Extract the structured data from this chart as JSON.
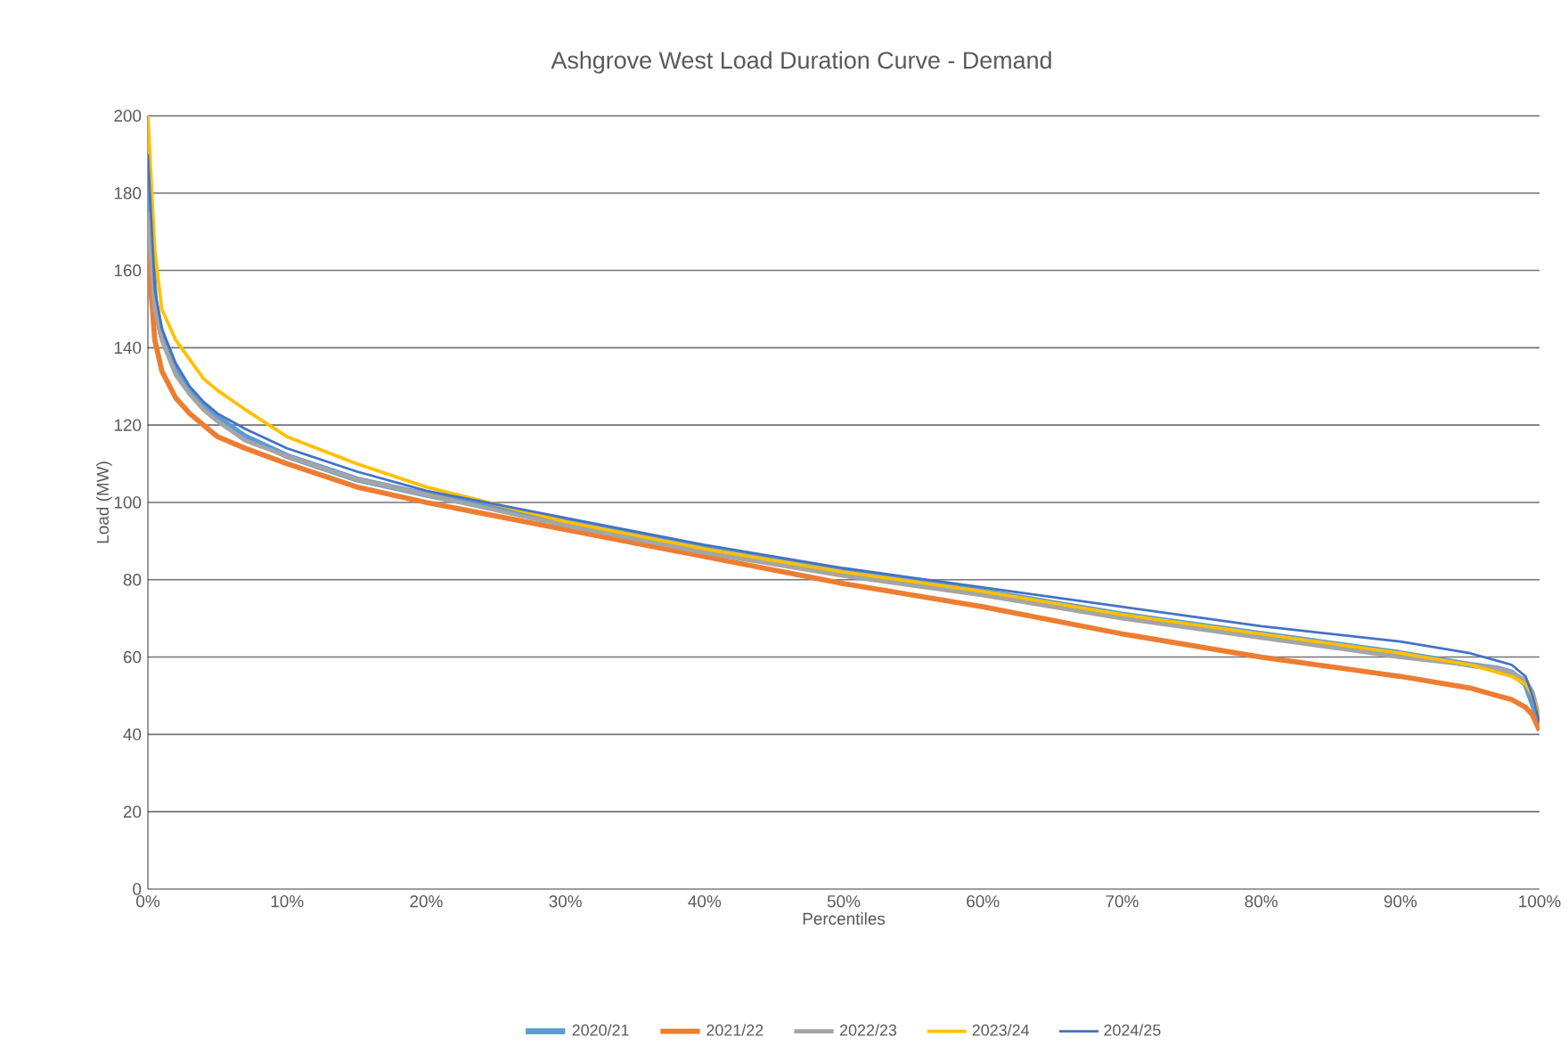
{
  "chart_data": {
    "type": "line",
    "title": "Ashgrove West Load Duration Curve - Demand",
    "xlabel": "Percentiles",
    "ylabel": "Load (MW)",
    "x": [
      0,
      0.5,
      1,
      2,
      3,
      4,
      5,
      7,
      10,
      15,
      20,
      30,
      40,
      50,
      60,
      70,
      80,
      90,
      95,
      97,
      98,
      99,
      99.5,
      100
    ],
    "series": [
      {
        "name": "2020/21",
        "color": "#5b9bd5",
        "values": [
          185,
          152,
          143,
          134,
          129,
          125,
          122,
          117,
          112,
          106,
          102,
          95,
          88,
          82,
          77,
          71,
          66,
          61,
          58,
          57,
          56,
          53,
          48,
          43
        ]
      },
      {
        "name": "2021/22",
        "color": "#ed7d31",
        "values": [
          165,
          142,
          134,
          127,
          123,
          120,
          117,
          114,
          110,
          104,
          100,
          93,
          86,
          79,
          73,
          66,
          60,
          55,
          52,
          50,
          49,
          47,
          45,
          41
        ]
      },
      {
        "name": "2022/23",
        "color": "#a5a5a5",
        "values": [
          175,
          150,
          142,
          133,
          128,
          124,
          121,
          116,
          112,
          106,
          102,
          94,
          87,
          81,
          76,
          70,
          65,
          60,
          58,
          57,
          56,
          54,
          51,
          44
        ]
      },
      {
        "name": "2023/24",
        "color": "#ffc000",
        "values": [
          200,
          165,
          150,
          142,
          137,
          132,
          129,
          124,
          117,
          110,
          104,
          95,
          88,
          82,
          77,
          71,
          66,
          61,
          58,
          56,
          55,
          53,
          50,
          44
        ]
      },
      {
        "name": "2024/25",
        "color": "#4472c4",
        "values": [
          190,
          155,
          145,
          136,
          130,
          126,
          123,
          119,
          114,
          108,
          103,
          96,
          89,
          83,
          78,
          73,
          68,
          64,
          61,
          59,
          58,
          55,
          50,
          43
        ]
      }
    ],
    "xlim": [
      0,
      100
    ],
    "xticks": [
      {
        "value": 0,
        "label": "0%"
      },
      {
        "value": 10,
        "label": "10%"
      },
      {
        "value": 20,
        "label": "20%"
      },
      {
        "value": 30,
        "label": "30%"
      },
      {
        "value": 40,
        "label": "40%"
      },
      {
        "value": 50,
        "label": "50%"
      },
      {
        "value": 60,
        "label": "60%"
      },
      {
        "value": 70,
        "label": "70%"
      },
      {
        "value": 80,
        "label": "80%"
      },
      {
        "value": 90,
        "label": "90%"
      },
      {
        "value": 100,
        "label": "100%"
      }
    ],
    "ylim": [
      0,
      200
    ],
    "yticks": [
      0,
      20,
      40,
      60,
      80,
      100,
      120,
      140,
      160,
      180,
      200
    ],
    "grid": "y",
    "legend": "bottom",
    "marker": "none",
    "line_style": "solid"
  }
}
